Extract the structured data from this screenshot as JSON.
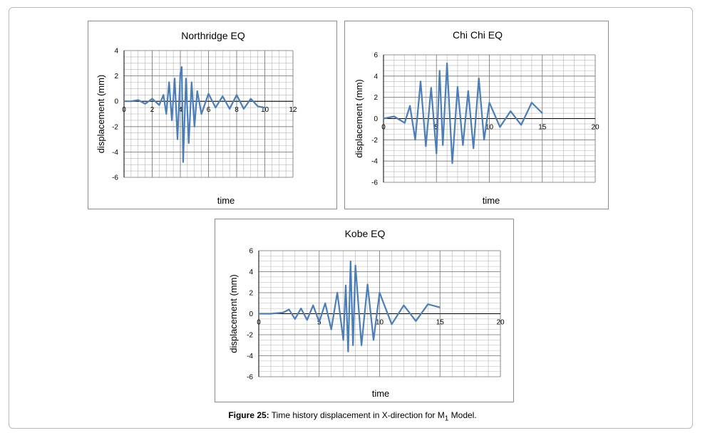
{
  "caption": {
    "label": "Figure 25:",
    "text_before": " Time history displacement in X-direction for M",
    "subscript": "1",
    "text_after": " Model."
  },
  "chart_data": [
    {
      "type": "line",
      "title": "Northridge EQ",
      "xlabel": "time",
      "ylabel": "displacement (mm)",
      "xlim": [
        0,
        12
      ],
      "ylim": [
        -6,
        4
      ],
      "xticks": [
        0,
        2,
        4,
        6,
        8,
        10,
        12
      ],
      "yticks": [
        -6,
        -4,
        -2,
        0,
        2,
        4
      ],
      "grid": true,
      "legend": "none",
      "line_color": "#4a7ebb",
      "series": [
        {
          "x": [
            0,
            0.5,
            1.0,
            1.5,
            2.0,
            2.5,
            2.8,
            3.0,
            3.2,
            3.4,
            3.6,
            3.8,
            4.0,
            4.1,
            4.2,
            4.4,
            4.6,
            4.8,
            5.0,
            5.2,
            5.5,
            6.0,
            6.5,
            7.0,
            7.5,
            8.0,
            8.5,
            9.0,
            9.5,
            10.0
          ],
          "values": [
            0,
            0,
            0.1,
            -0.2,
            0.2,
            -0.3,
            0.5,
            -1.0,
            1.5,
            -1.5,
            1.8,
            -3.0,
            2.2,
            2.7,
            -4.8,
            1.8,
            -3.3,
            1.5,
            -2.0,
            0.8,
            -1.0,
            0.6,
            -0.5,
            0.4,
            -0.6,
            0.5,
            -0.6,
            0.2,
            -0.4,
            -0.5
          ]
        }
      ]
    },
    {
      "type": "line",
      "title": "Chi Chi EQ",
      "xlabel": "time",
      "ylabel": "displacement (mm)",
      "xlim": [
        0,
        20
      ],
      "ylim": [
        -6,
        6
      ],
      "xticks": [
        0,
        5,
        10,
        15,
        20
      ],
      "yticks": [
        -6,
        -4,
        -2,
        0,
        2,
        4,
        6
      ],
      "grid": true,
      "legend": "none",
      "line_color": "#4a7ebb",
      "series": [
        {
          "x": [
            0,
            1,
            2,
            2.5,
            3,
            3.5,
            4,
            4.5,
            5,
            5.3,
            5.6,
            6,
            6.5,
            7,
            7.5,
            8,
            8.5,
            9,
            9.5,
            10,
            11,
            12,
            13,
            14,
            15
          ],
          "values": [
            0,
            0.2,
            -0.4,
            1.2,
            -2.0,
            3.5,
            -2.6,
            2.9,
            -3.3,
            4.5,
            -2.5,
            5.2,
            -4.2,
            3.0,
            -2.5,
            2.6,
            -2.8,
            3.8,
            -2.0,
            1.5,
            -0.8,
            0.7,
            -0.6,
            1.5,
            0.5
          ]
        }
      ]
    },
    {
      "type": "line",
      "title": "Kobe EQ",
      "xlabel": "time",
      "ylabel": "displacement (mm)",
      "xlim": [
        0,
        20
      ],
      "ylim": [
        -6,
        6
      ],
      "xticks": [
        0,
        5,
        10,
        15,
        20
      ],
      "yticks": [
        -6,
        -4,
        -2,
        0,
        2,
        4,
        6
      ],
      "grid": true,
      "legend": "none",
      "line_color": "#4a7ebb",
      "series": [
        {
          "x": [
            0,
            1,
            2,
            2.5,
            3,
            3.5,
            4,
            4.5,
            5,
            5.5,
            6,
            6.5,
            7,
            7.2,
            7.4,
            7.6,
            7.8,
            8,
            8.5,
            9,
            9.5,
            10,
            11,
            12,
            13,
            14,
            15
          ],
          "values": [
            0,
            0,
            0.1,
            0.4,
            -0.5,
            0.5,
            -0.6,
            0.8,
            -0.8,
            1.0,
            -1.5,
            2.0,
            -2.5,
            2.7,
            -3.6,
            5.0,
            -3.0,
            4.6,
            -3.0,
            2.8,
            -2.5,
            2.0,
            -1.0,
            0.8,
            -0.7,
            0.9,
            0.6
          ]
        }
      ]
    }
  ]
}
